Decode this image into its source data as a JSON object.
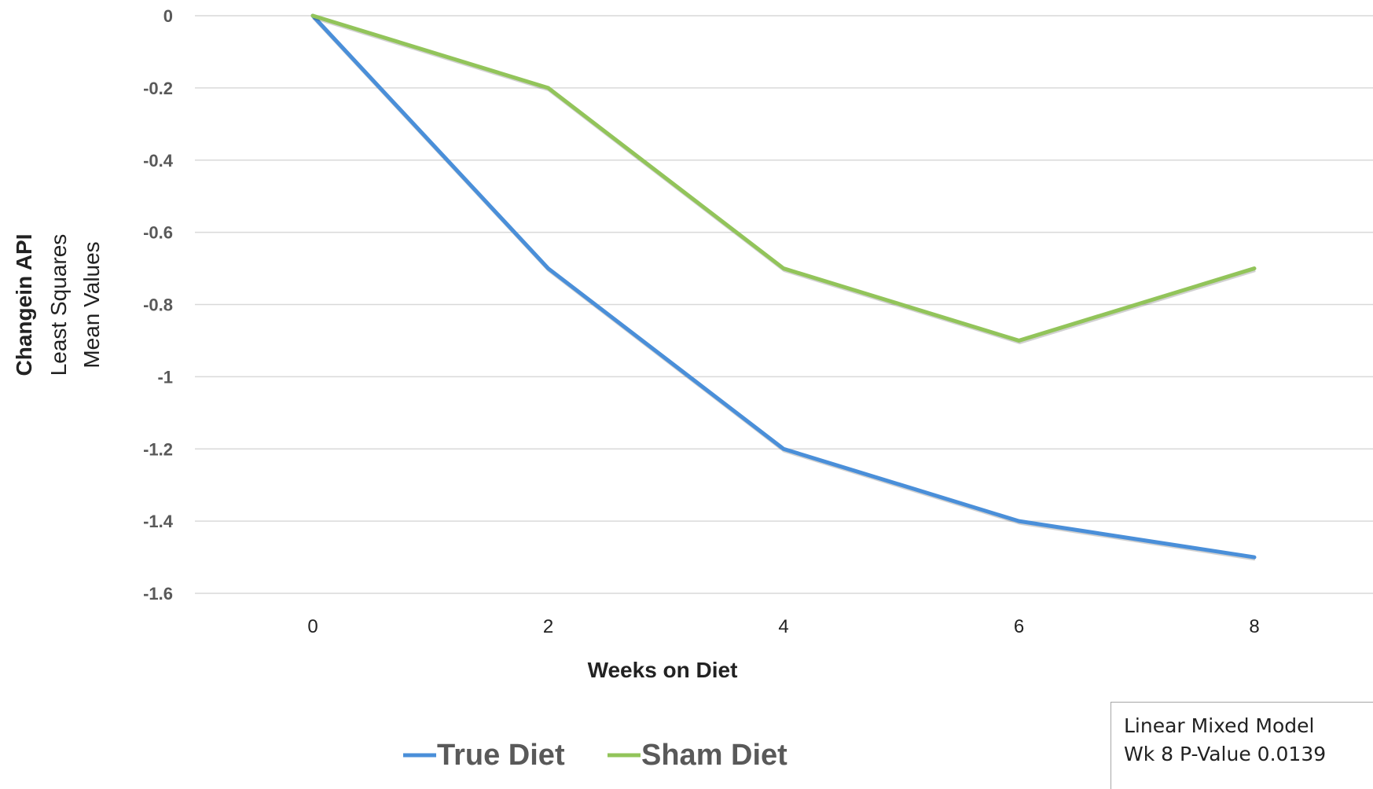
{
  "chart_data": {
    "type": "line",
    "x": [
      0,
      2,
      4,
      6,
      8
    ],
    "series": [
      {
        "name": "True Diet",
        "color": "#4a8fd9",
        "values": [
          0,
          -0.7,
          -1.2,
          -1.4,
          -1.5
        ]
      },
      {
        "name": "Sham Diet",
        "color": "#92c45a",
        "values": [
          0,
          -0.2,
          -0.7,
          -0.9,
          -0.7
        ]
      }
    ],
    "xlabel": "Weeks on Diet",
    "ylabel": {
      "bold": "Changein API",
      "line2": "Least Squares",
      "line3": "Mean Values"
    },
    "ylim": [
      -1.6,
      0
    ],
    "yticks": [
      0,
      -0.2,
      -0.4,
      -0.6,
      -0.8,
      -1,
      -1.2,
      -1.4,
      -1.6
    ],
    "ytick_labels": [
      "0",
      "-0.2",
      "-0.4",
      "-0.6",
      "-0.8",
      "-1",
      "-1.2",
      "-1.4",
      "-1.6"
    ],
    "xtick_labels": [
      "0",
      "2",
      "4",
      "6",
      "8"
    ],
    "grid": true,
    "legend_position": "bottom",
    "annotation": {
      "line1": "Linear Mixed Model",
      "line2": "Wk 8 P-Value 0.0139"
    }
  }
}
